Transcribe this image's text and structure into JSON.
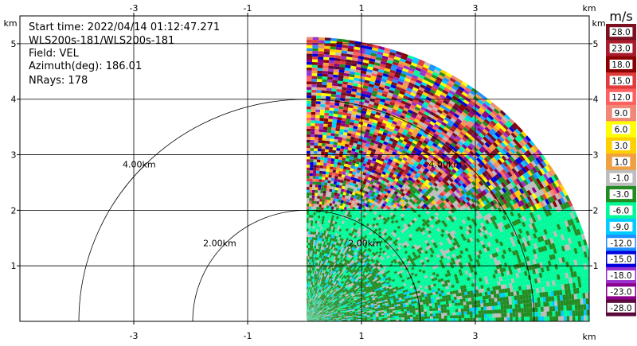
{
  "info": {
    "start_time": "Start time: 2022/04/14 01:12:47.271",
    "instrument": "WLS200s-181/WLS200s-181",
    "field": "Field: VEL",
    "azimuth": "Azimuth(deg): 186.01",
    "nrays": "NRays: 178"
  },
  "axis_unit": "km",
  "colorbar": {
    "unit": "m/s",
    "labels": [
      "28.0",
      "23.0",
      "18.0",
      "15.0",
      "12.0",
      "9.0",
      "6.0",
      "3.0",
      "1.0",
      "-1.0",
      "-3.0",
      "-6.0",
      "-9.0",
      "-12.0",
      "-15.0",
      "-18.0",
      "-23.0",
      "-28.0"
    ],
    "colors": [
      "#7a1020",
      "#a81c2c",
      "#8b0000",
      "#e03c3c",
      "#ff6060",
      "#f08878",
      "#ffff00",
      "#ffd000",
      "#f0a040",
      "#bdbdbd",
      "#228b22",
      "#00fa9a",
      "#00ccff",
      "#1e90ff",
      "#0000dd",
      "#9a32cd",
      "#8b008b",
      "#5a0a3a"
    ]
  },
  "chart_data": {
    "type": "heatmap",
    "xlim": [
      -5,
      5
    ],
    "ylim": [
      0,
      5.5
    ],
    "xticks": [
      -3,
      -1,
      1,
      3
    ],
    "yticks": [
      1,
      2,
      3,
      4,
      5
    ],
    "rings": [
      {
        "range_km": 2,
        "label": "2.00km"
      },
      {
        "range_km": 4,
        "label": "4.00km"
      }
    ],
    "inner_ring_labels": [
      "2.00km",
      "4.00km"
    ],
    "sector": {
      "azimuth_start_deg": 0,
      "azimuth_end_deg": 90,
      "max_range_km": 5.1
    },
    "field": "VEL",
    "units": "m/s"
  }
}
